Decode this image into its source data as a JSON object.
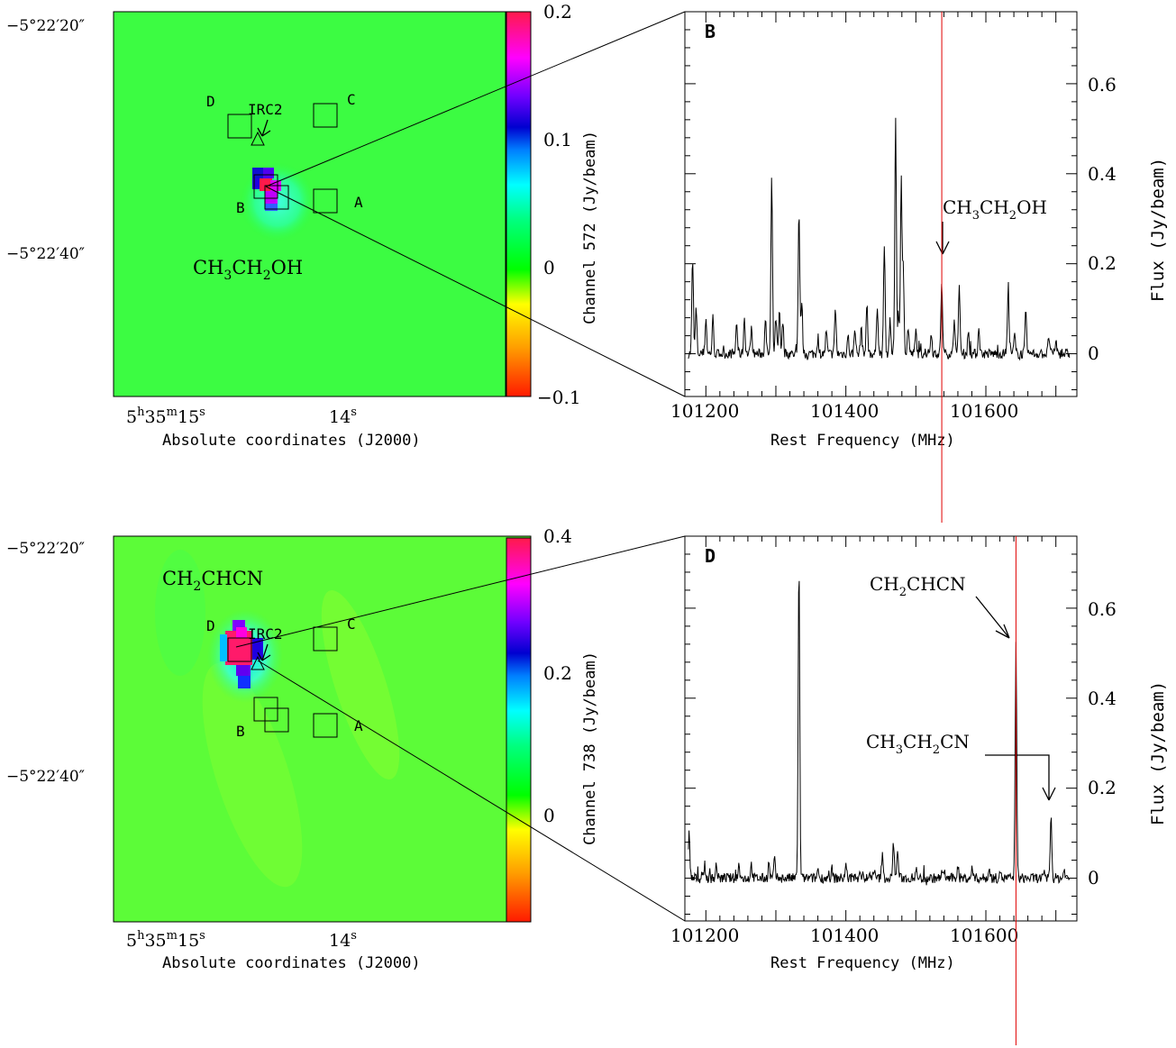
{
  "figure": {
    "panel_b_label": "B",
    "panel_d_label": "D"
  },
  "maps": [
    {
      "id": "top",
      "dec_ticks": [
        "−5°22′20″",
        "−5°22′40″"
      ],
      "ra_tick_1": {
        "h": "5",
        "hs": "h",
        "m": "35",
        "ms": "m",
        "s": "15",
        "ss": "s"
      },
      "ra_tick_2": {
        "s": "14",
        "ss": "s"
      },
      "xlabel": "Absolute coordinates (J2000)",
      "molecule": {
        "p1": "CH",
        "s1": "3",
        "p2": "CH",
        "s2": "2",
        "p3": "OH"
      },
      "colorbar_label": "Channel 572 (Jy/beam)",
      "colorbar_ticks": [
        "0.2",
        "0.1",
        "0",
        "−0.1"
      ],
      "colorbar_range": [
        -0.1,
        0.2
      ],
      "sources": [
        "A",
        "B",
        "C",
        "D"
      ],
      "irc2_label": "IRC2"
    },
    {
      "id": "bottom",
      "dec_ticks": [
        "−5°22′20″",
        "−5°22′40″"
      ],
      "ra_tick_1": {
        "h": "5",
        "hs": "h",
        "m": "35",
        "ms": "m",
        "s": "15",
        "ss": "s"
      },
      "ra_tick_2": {
        "s": "14",
        "ss": "s"
      },
      "xlabel": "Absolute coordinates (J2000)",
      "molecule": {
        "p1": "CH",
        "s1": "2",
        "p2": "CHCN"
      },
      "colorbar_label": "Channel 738 (Jy/beam)",
      "colorbar_ticks": [
        "0.4",
        "0.2",
        "0"
      ],
      "colorbar_range": [
        -0.1,
        0.4
      ],
      "sources": [
        "A",
        "B",
        "C",
        "D"
      ],
      "irc2_label": "IRC2"
    }
  ],
  "chart_data": [
    {
      "type": "line",
      "panel": "B",
      "xlabel": "Rest Frequency (MHz)",
      "ylabel": "Flux (Jy/beam)",
      "xlim": [
        101170,
        101730
      ],
      "ylim": [
        -0.095,
        0.76
      ],
      "xticks": [
        "101200",
        "101400",
        "101600"
      ],
      "yticks": [
        "0",
        "0.2",
        "0.4",
        "0.6"
      ],
      "marker_frequency": 101537,
      "annotations": [
        {
          "parts": {
            "p1": "CH",
            "s1": "3",
            "p2": "CH",
            "s2": "2",
            "p3": "OH"
          },
          "x": 101537,
          "y": 0.215
        }
      ],
      "peaks": [
        [
          101181,
          0.21
        ],
        [
          101186,
          0.1
        ],
        [
          101200,
          0.08
        ],
        [
          101210,
          0.08
        ],
        [
          101244,
          0.07
        ],
        [
          101255,
          0.08
        ],
        [
          101265,
          0.06
        ],
        [
          101285,
          0.08
        ],
        [
          101294,
          0.39
        ],
        [
          101300,
          0.08
        ],
        [
          101305,
          0.09
        ],
        [
          101310,
          0.07
        ],
        [
          101333,
          0.32
        ],
        [
          101337,
          0.12
        ],
        [
          101360,
          0.04
        ],
        [
          101372,
          0.05
        ],
        [
          101385,
          0.1
        ],
        [
          101403,
          0.04
        ],
        [
          101413,
          0.06
        ],
        [
          101422,
          0.06
        ],
        [
          101430,
          0.11
        ],
        [
          101445,
          0.11
        ],
        [
          101455,
          0.24
        ],
        [
          101463,
          0.07
        ],
        [
          101471,
          0.53
        ],
        [
          101475,
          0.09
        ],
        [
          101479,
          0.39
        ],
        [
          101482,
          0.19
        ],
        [
          101489,
          0.06
        ],
        [
          101500,
          0.05
        ],
        [
          101522,
          0.05
        ],
        [
          101537,
          0.16
        ],
        [
          101555,
          0.08
        ],
        [
          101562,
          0.15
        ],
        [
          101575,
          0.05
        ],
        [
          101590,
          0.06
        ],
        [
          101632,
          0.15
        ],
        [
          101641,
          0.04
        ],
        [
          101657,
          0.09
        ],
        [
          101690,
          0.04
        ],
        [
          101700,
          0.03
        ]
      ]
    },
    {
      "type": "line",
      "panel": "D",
      "xlabel": "Rest Frequency (MHz)",
      "ylabel": "Flux (Jy/beam)",
      "xlim": [
        101170,
        101730
      ],
      "ylim": [
        -0.095,
        0.76
      ],
      "xticks": [
        "101200",
        "101400",
        "101600"
      ],
      "yticks": [
        "0",
        "0.2",
        "0.4",
        "0.6"
      ],
      "marker_frequency": 101643,
      "annotations": [
        {
          "parts": {
            "p1": "CH",
            "s1": "2",
            "p2": "CHCN"
          },
          "x": 101643,
          "y": 0.51
        },
        {
          "parts": {
            "p1": "CH",
            "s1": "3",
            "p2": "CH",
            "s2": "2",
            "p3": "CN"
          },
          "x": 101693,
          "y": 0.16
        }
      ],
      "peaks": [
        [
          101176,
          0.1
        ],
        [
          101198,
          0.03
        ],
        [
          101215,
          0.03
        ],
        [
          101247,
          0.03
        ],
        [
          101265,
          0.03
        ],
        [
          101290,
          0.03
        ],
        [
          101298,
          0.04
        ],
        [
          101333,
          0.7
        ],
        [
          101360,
          0.02
        ],
        [
          101380,
          0.02
        ],
        [
          101400,
          0.03
        ],
        [
          101420,
          0.02
        ],
        [
          101440,
          0.02
        ],
        [
          101452,
          0.05
        ],
        [
          101468,
          0.08
        ],
        [
          101474,
          0.06
        ],
        [
          101500,
          0.02
        ],
        [
          101540,
          0.02
        ],
        [
          101560,
          0.03
        ],
        [
          101580,
          0.02
        ],
        [
          101605,
          0.02
        ],
        [
          101620,
          0.02
        ],
        [
          101643,
          0.51
        ],
        [
          101693,
          0.14
        ],
        [
          101712,
          0.02
        ]
      ]
    }
  ]
}
